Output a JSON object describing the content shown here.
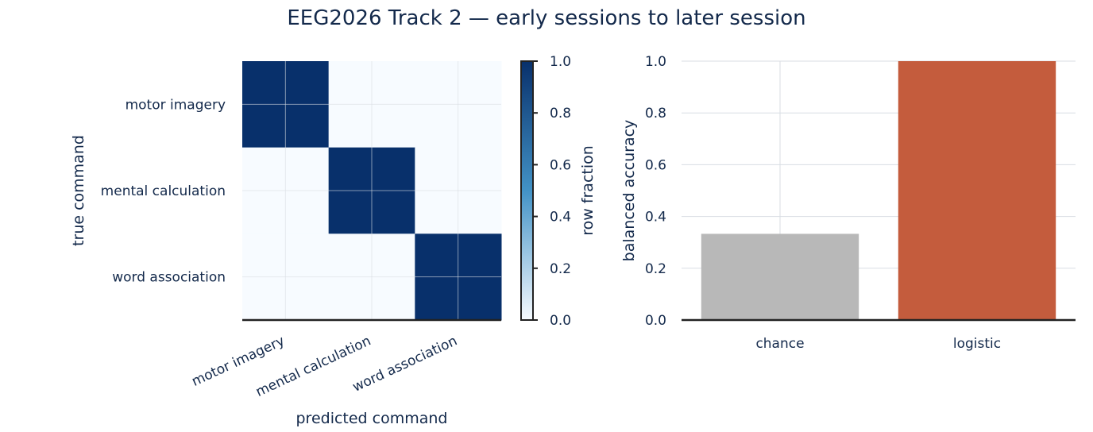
{
  "title": "EEG2026 Track 2 — early sessions to later session",
  "colors": {
    "text": "#13294b",
    "heat_low": "#f7fbff",
    "heat_high": "#08306b",
    "bar_chance": "#b8b8b8",
    "bar_logistic": "#c45c3d",
    "grid": "#d8dde3",
    "axis": "#222222"
  },
  "chart_data": [
    {
      "type": "heatmap",
      "title": "",
      "xlabel": "predicted command",
      "ylabel": "true command",
      "row_labels": [
        "motor imagery",
        "mental calculation",
        "word association"
      ],
      "col_labels": [
        "motor imagery",
        "mental calculation",
        "word association"
      ],
      "values": [
        [
          1.0,
          0.0,
          0.0
        ],
        [
          0.0,
          1.0,
          0.0
        ],
        [
          0.0,
          0.0,
          1.0
        ]
      ],
      "colorbar": {
        "label": "row fraction",
        "range": [
          0.0,
          1.0
        ],
        "ticks": [
          "0.0",
          "0.2",
          "0.4",
          "0.6",
          "0.8",
          "1.0"
        ]
      },
      "grid": true
    },
    {
      "type": "bar",
      "title": "",
      "xlabel": "",
      "ylabel": "balanced accuracy",
      "categories": [
        "chance",
        "logistic"
      ],
      "values": [
        0.333,
        1.0
      ],
      "ylim": [
        0.0,
        1.0
      ],
      "yticks": [
        "0.0",
        "0.2",
        "0.4",
        "0.6",
        "0.8",
        "1.0"
      ],
      "grid": true
    }
  ]
}
